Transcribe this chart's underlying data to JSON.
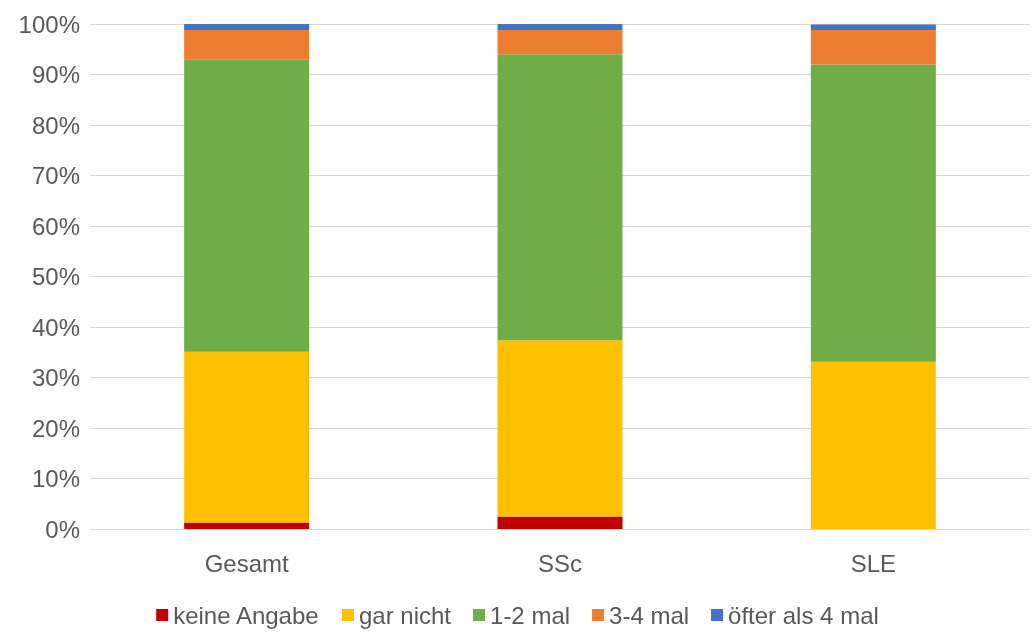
{
  "chart_data": {
    "type": "bar",
    "stacked": true,
    "categories": [
      "Gesamt",
      "SSc",
      "SLE"
    ],
    "series": [
      {
        "name": "keine Angabe",
        "color": "#c00000",
        "values": [
          1.3,
          2.5,
          0
        ]
      },
      {
        "name": "gar nicht",
        "color": "#ffc000",
        "values": [
          33.8,
          34.9,
          33.1
        ]
      },
      {
        "name": "1-2 mal",
        "color": "#70ad47",
        "values": [
          57.9,
          56.6,
          58.9
        ]
      },
      {
        "name": "3-4 mal",
        "color": "#ed7d31",
        "values": [
          5.8,
          4.8,
          6.8
        ]
      },
      {
        "name": "öfter als 4 mal",
        "color": "#4472c4",
        "values": [
          1.2,
          1.2,
          1.1
        ]
      }
    ],
    "ylim": [
      0,
      100
    ],
    "yticks": [
      {
        "value": 0,
        "label": "0%"
      },
      {
        "value": 10,
        "label": "10%"
      },
      {
        "value": 20,
        "label": "20%"
      },
      {
        "value": 30,
        "label": "30%"
      },
      {
        "value": 40,
        "label": "40%"
      },
      {
        "value": 50,
        "label": "50%"
      },
      {
        "value": 60,
        "label": "60%"
      },
      {
        "value": 70,
        "label": "70%"
      },
      {
        "value": 80,
        "label": "80%"
      },
      {
        "value": 90,
        "label": "90%"
      },
      {
        "value": 100,
        "label": "100%"
      }
    ],
    "grid": "y",
    "legend": "bottom"
  }
}
